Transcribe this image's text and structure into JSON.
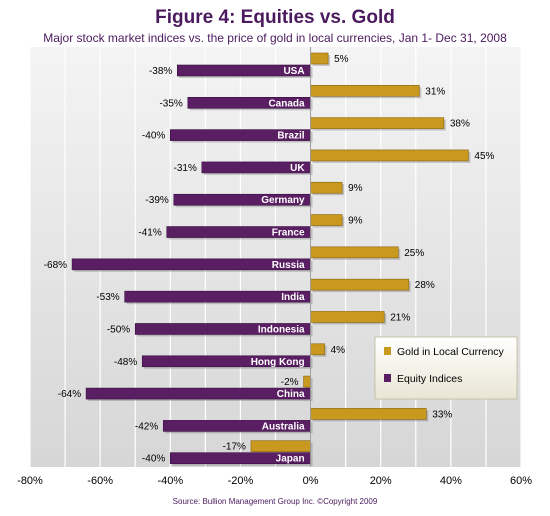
{
  "title": "Figure 4: Equities vs. Gold",
  "subtitle": "Major stock market indices  vs. the price of gold in local currencies, Jan 1- Dec 31, 2008",
  "source": "Source: Bullion Management Group Inc. ©Copyright 2009",
  "colors": {
    "gold": "#c9981e",
    "equity": "#5a1e63",
    "plot_background": "#e3e3e3",
    "grid": "#ffffff",
    "title": "#4b1a5e"
  },
  "chart_data": {
    "type": "bar",
    "orientation": "horizontal",
    "categories": [
      "USA",
      "Canada",
      "Brazil",
      "UK",
      "Germany",
      "France",
      "Russia",
      "India",
      "Indonesia",
      "Hong Kong",
      "China",
      "Australia",
      "Japan"
    ],
    "series": [
      {
        "name": "Gold in Local Currency",
        "color": "#c9981e",
        "values": [
          5,
          31,
          38,
          45,
          9,
          9,
          25,
          28,
          21,
          4,
          -2,
          33,
          -17
        ]
      },
      {
        "name": "Equity Indices",
        "color": "#5a1e63",
        "values": [
          -38,
          -35,
          -40,
          -31,
          -39,
          -41,
          -68,
          -53,
          -50,
          -48,
          -64,
          -42,
          -40
        ]
      }
    ],
    "x_ticks": [
      "-80%",
      "-60%",
      "-40%",
      "-20%",
      "0%",
      "20%",
      "40%",
      "60%"
    ],
    "xlim": [
      -80,
      60
    ],
    "value_suffix": "%",
    "grid": true,
    "legend_position": "right"
  }
}
